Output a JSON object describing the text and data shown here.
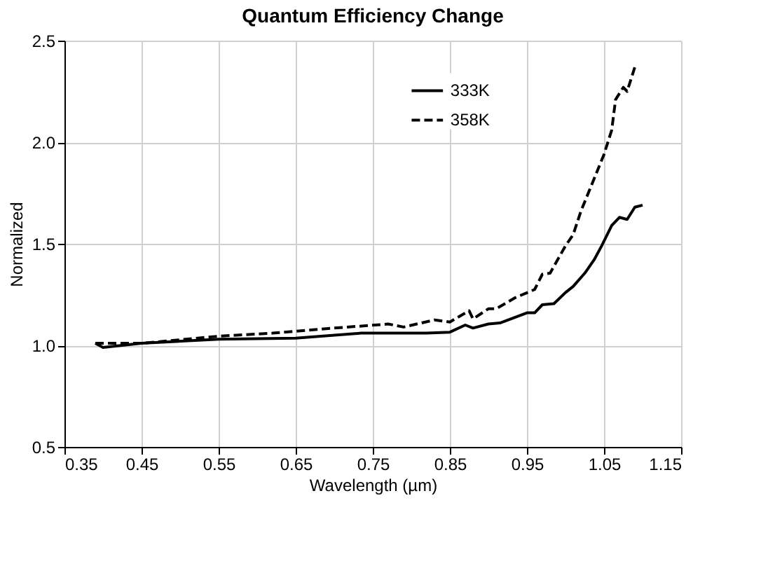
{
  "chart_data": {
    "type": "line",
    "title": "Quantum Efficiency Change",
    "xlabel": "Wavelength (µm)",
    "ylabel": "Normalized",
    "xlim": [
      0.35,
      1.15
    ],
    "xticks": [
      0.35,
      0.45,
      0.55,
      0.65,
      0.75,
      0.85,
      0.95,
      1.05,
      1.15
    ],
    "ylim": [
      0.5,
      2.5
    ],
    "yticks": [
      0.5,
      {
        "value": 1,
        "label": "1.0"
      },
      1.5,
      {
        "value": 2,
        "label": "2.0"
      },
      {
        "value": 2.5,
        "label": "2.5"
      }
    ],
    "grid": true,
    "legend": "top right",
    "marker": "none",
    "series": [
      {
        "name": "333K",
        "color": "#000000",
        "line_style": "solid",
        "x": [
          0.39,
          0.4,
          0.45,
          0.55,
          0.65,
          0.735,
          0.78,
          0.82,
          0.85,
          0.87,
          0.88,
          0.9,
          0.915,
          0.95,
          0.96,
          0.97,
          0.985,
          1.0,
          1.01,
          1.025,
          1.037,
          1.047,
          1.06,
          1.07,
          1.08,
          1.09,
          1.1
        ],
        "values": [
          1.01,
          0.99,
          1.01,
          1.03,
          1.035,
          1.06,
          1.06,
          1.06,
          1.065,
          1.1,
          1.085,
          1.105,
          1.11,
          1.16,
          1.16,
          1.2,
          1.205,
          1.26,
          1.29,
          1.355,
          1.42,
          1.49,
          1.59,
          1.63,
          1.62,
          1.68,
          1.69
        ]
      },
      {
        "name": "358K",
        "color": "#000000",
        "line_style": "dashed",
        "x": [
          0.39,
          0.45,
          0.55,
          0.62,
          0.7,
          0.77,
          0.79,
          0.83,
          0.85,
          0.875,
          0.88,
          0.9,
          0.91,
          0.935,
          0.96,
          0.97,
          0.98,
          1.0,
          1.01,
          1.02,
          1.05,
          1.06,
          1.065,
          1.075,
          1.08,
          1.09
        ],
        "values": [
          1.01,
          1.01,
          1.045,
          1.06,
          1.085,
          1.105,
          1.09,
          1.125,
          1.115,
          1.17,
          1.13,
          1.18,
          1.18,
          1.235,
          1.275,
          1.35,
          1.355,
          1.49,
          1.545,
          1.66,
          1.94,
          2.06,
          2.21,
          2.27,
          2.25,
          2.37
        ]
      }
    ]
  }
}
